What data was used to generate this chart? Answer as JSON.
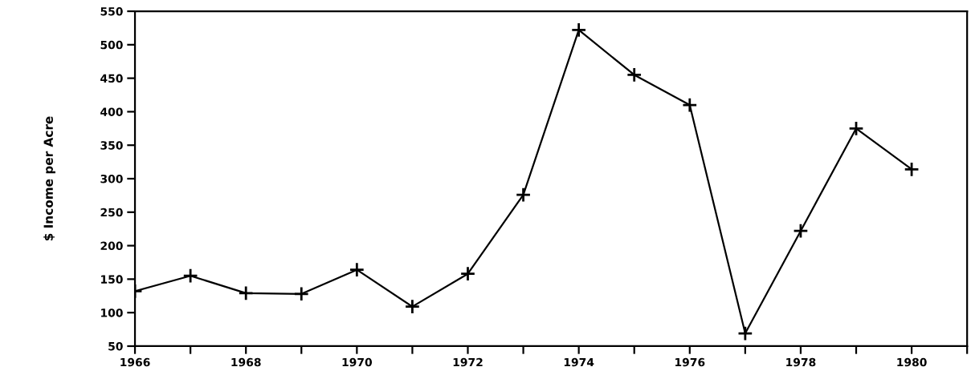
{
  "chart_data": {
    "type": "line",
    "ylabel": "$ Income per Acre",
    "x": [
      1966,
      1967,
      1968,
      1969,
      1970,
      1971,
      1972,
      1973,
      1974,
      1975,
      1976,
      1977,
      1978,
      1979,
      1980
    ],
    "series": [
      {
        "color": "#000000",
        "values": [
          132,
          155,
          129,
          128,
          164,
          109,
          158,
          276,
          522,
          455,
          410,
          69,
          222,
          375,
          314
        ]
      }
    ],
    "xlim": [
      1966,
      1981
    ],
    "xticks": [
      1966,
      {
        "value": 1967,
        "label": null
      },
      1968,
      {
        "value": 1969,
        "label": null
      },
      1970,
      {
        "value": 1971,
        "label": null
      },
      1972,
      {
        "value": 1973,
        "label": null
      },
      1974,
      {
        "value": 1975,
        "label": null
      },
      1976,
      {
        "value": 1977,
        "label": null
      },
      1978,
      {
        "value": 1979,
        "label": null
      },
      1980,
      {
        "value": 1981,
        "label": null
      }
    ],
    "ylim": [
      50,
      550
    ],
    "yticks": [
      50,
      100,
      150,
      200,
      250,
      300,
      350,
      400,
      450,
      500,
      550
    ],
    "grid": false,
    "legend": false,
    "marker": "cross",
    "line_style": "solid"
  }
}
